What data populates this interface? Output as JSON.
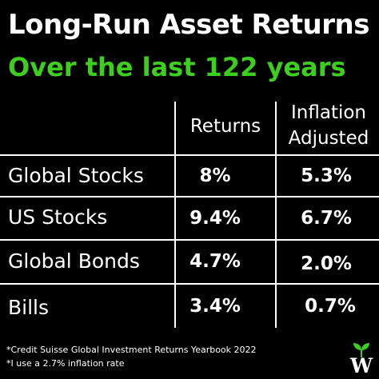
{
  "colors": {
    "background": "#000000",
    "text": "#ffffff",
    "accent_green": "#3ecf1e"
  },
  "chart_data": {
    "type": "table",
    "title": "Long-Run Asset Returns",
    "subtitle": "Over the last 122 years",
    "columns": [
      "Returns",
      "Inflation Adjusted"
    ],
    "column_header_lines": [
      [
        "Returns"
      ],
      [
        "Inflation",
        "Adjusted"
      ]
    ],
    "rows": [
      {
        "label": "Global Stocks",
        "returns": "8%",
        "inflation_adjusted": "5.3%"
      },
      {
        "label": "US Stocks",
        "returns": "9.4%",
        "inflation_adjusted": "6.7%"
      },
      {
        "label": "Global Bonds",
        "returns": "4.7%",
        "inflation_adjusted": "2.0%"
      },
      {
        "label": "Bills",
        "returns": "3.4%",
        "inflation_adjusted": "0.7%"
      }
    ],
    "footnotes": [
      "*Credit Suisse Global Investment Returns Yearbook 2022",
      "*I use a 2.7% inflation rate"
    ]
  },
  "logo": {
    "letter": "W",
    "icon": "sprout-icon"
  }
}
